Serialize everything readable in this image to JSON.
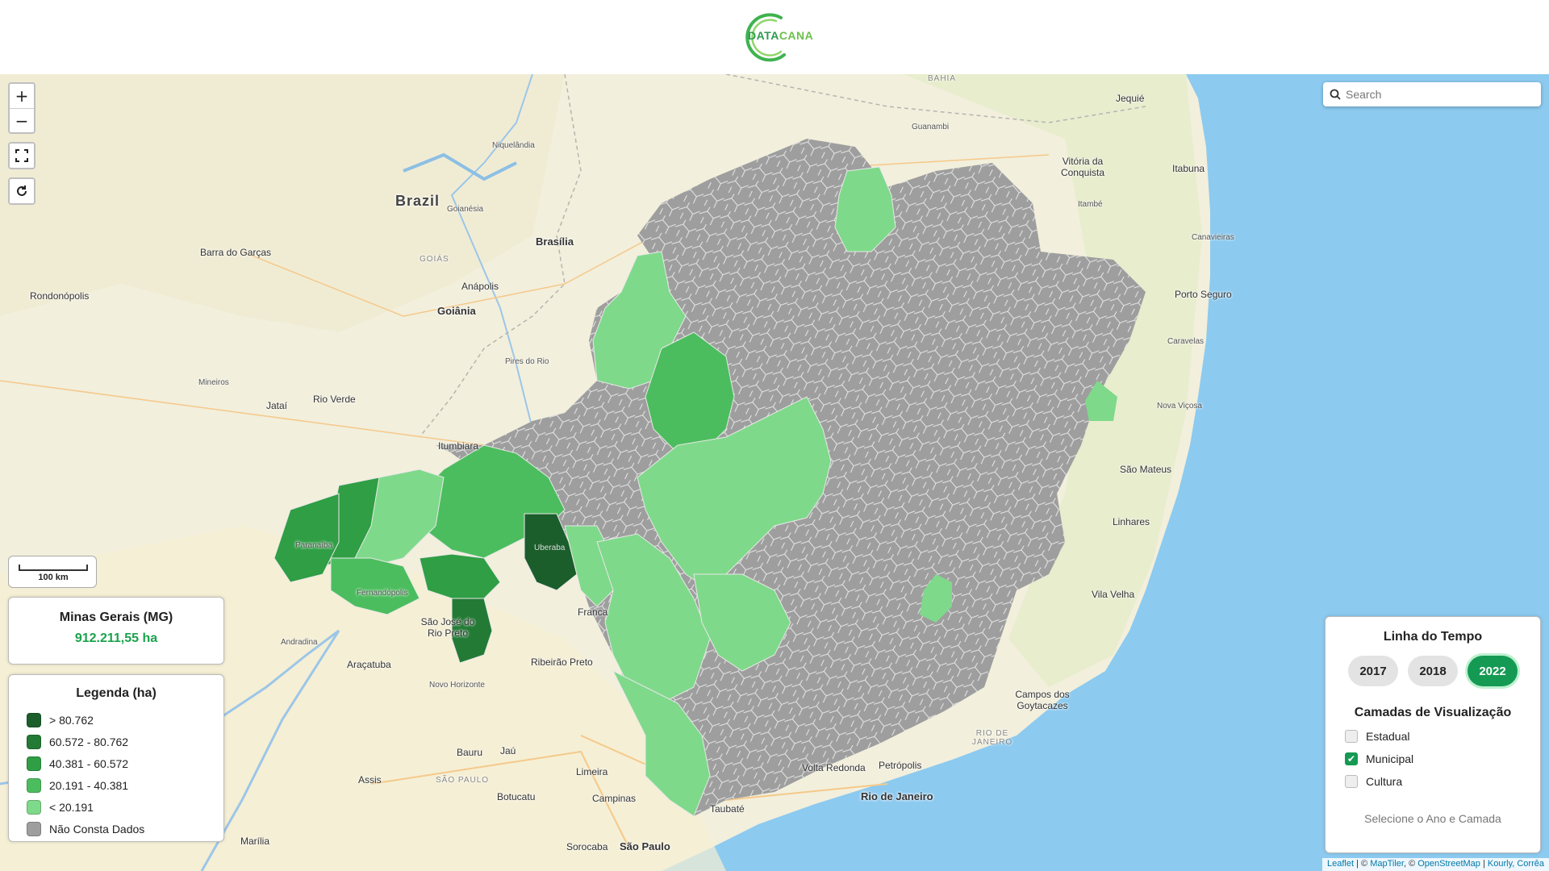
{
  "header": {
    "logo_part1": "DATA",
    "logo_part2": "CANA"
  },
  "map_controls": {
    "zoom_in": "+",
    "zoom_out": "−",
    "fullscreen_icon": "fullscreen-icon",
    "reset_icon": "refresh-icon"
  },
  "search": {
    "placeholder": "Search"
  },
  "scale": {
    "label": "100 km"
  },
  "total": {
    "name": "Minas Gerais (MG)",
    "value": "912.211,55 ha"
  },
  "legend": {
    "title": "Legenda (ha)",
    "items": [
      {
        "label": "> 80.762",
        "color": "#1b5e2b"
      },
      {
        "label": "60.572 - 80.762",
        "color": "#237a35"
      },
      {
        "label": "40.381 - 60.572",
        "color": "#2f9e44"
      },
      {
        "label": "20.191 - 40.381",
        "color": "#4cbd5e"
      },
      {
        "label": "< 20.191",
        "color": "#7fd98a"
      },
      {
        "label": "Não Consta Dados",
        "color": "#9e9e9e"
      }
    ]
  },
  "timeline": {
    "title": "Linha do Tempo",
    "years": [
      "2017",
      "2018",
      "2022"
    ],
    "active_year": "2022",
    "layers_title": "Camadas de Visualização",
    "layers": [
      {
        "label": "Estadual",
        "checked": false
      },
      {
        "label": "Municipal",
        "checked": true
      },
      {
        "label": "Cultura",
        "checked": false
      }
    ],
    "hint": "Selecione o Ano e Camada"
  },
  "attribution": {
    "leaflet": "Leaflet",
    "sep1": " | © ",
    "maptiler": "MapTiler",
    "sep2": ", © ",
    "osm": "OpenStreetMap",
    "sep3": " | ",
    "authors": "Kourly, Corrêa"
  },
  "places": [
    {
      "name": "Brazil",
      "cls": "big"
    },
    {
      "name": "Brasília",
      "cls": "city"
    },
    {
      "name": "Goiânia",
      "cls": "city"
    },
    {
      "name": "Anápolis",
      "cls": ""
    },
    {
      "name": "Goianésia",
      "cls": "small"
    },
    {
      "name": "Niquelândia",
      "cls": "small"
    },
    {
      "name": "Barra do Garças",
      "cls": ""
    },
    {
      "name": "Rondonópolis",
      "cls": ""
    },
    {
      "name": "Rio Verde",
      "cls": ""
    },
    {
      "name": "Jataí",
      "cls": ""
    },
    {
      "name": "Mineiros",
      "cls": "small"
    },
    {
      "name": "Itumbiara",
      "cls": ""
    },
    {
      "name": "Pires do Rio",
      "cls": "small"
    },
    {
      "name": "Paranaíba",
      "cls": "small"
    },
    {
      "name": "Fernandópolis",
      "cls": "small"
    },
    {
      "name": "São José do Rio Preto",
      "cls": ""
    },
    {
      "name": "Andradina",
      "cls": "small"
    },
    {
      "name": "Araçatuba",
      "cls": ""
    },
    {
      "name": "Novo Horizonte",
      "cls": "small"
    },
    {
      "name": "Ribeirão Preto",
      "cls": ""
    },
    {
      "name": "Franca",
      "cls": ""
    },
    {
      "name": "Bauru",
      "cls": ""
    },
    {
      "name": "Jaú",
      "cls": ""
    },
    {
      "name": "Assis",
      "cls": ""
    },
    {
      "name": "Botucatu",
      "cls": ""
    },
    {
      "name": "Limeira",
      "cls": ""
    },
    {
      "name": "Campinas",
      "cls": ""
    },
    {
      "name": "Marília",
      "cls": ""
    },
    {
      "name": "Sorocaba",
      "cls": ""
    },
    {
      "name": "São Paulo",
      "cls": "city"
    },
    {
      "name": "Taubaté",
      "cls": ""
    },
    {
      "name": "Volta Redonda",
      "cls": ""
    },
    {
      "name": "Petrópolis",
      "cls": ""
    },
    {
      "name": "Rio de Janeiro",
      "cls": "city"
    },
    {
      "name": "Campos dos Goytacazes",
      "cls": ""
    },
    {
      "name": "Vila Velha",
      "cls": ""
    },
    {
      "name": "Linhares",
      "cls": ""
    },
    {
      "name": "São Mateus",
      "cls": ""
    },
    {
      "name": "Nova Viçosa",
      "cls": "small"
    },
    {
      "name": "Caravelas",
      "cls": "small"
    },
    {
      "name": "Porto Seguro",
      "cls": ""
    },
    {
      "name": "Canavieiras",
      "cls": "small"
    },
    {
      "name": "Itabuna",
      "cls": ""
    },
    {
      "name": "Itambé",
      "cls": "small"
    },
    {
      "name": "Vitória da Conquista",
      "cls": ""
    },
    {
      "name": "Jequié",
      "cls": ""
    },
    {
      "name": "Guanambi",
      "cls": "small"
    },
    {
      "name": "BAHIA",
      "cls": "region"
    },
    {
      "name": "GOIÁS",
      "cls": "region"
    },
    {
      "name": "SÃO PAULO",
      "cls": "region"
    },
    {
      "name": "RIO DE JANEIRO",
      "cls": "region"
    },
    {
      "name": "Uberaba",
      "cls": "small"
    }
  ]
}
